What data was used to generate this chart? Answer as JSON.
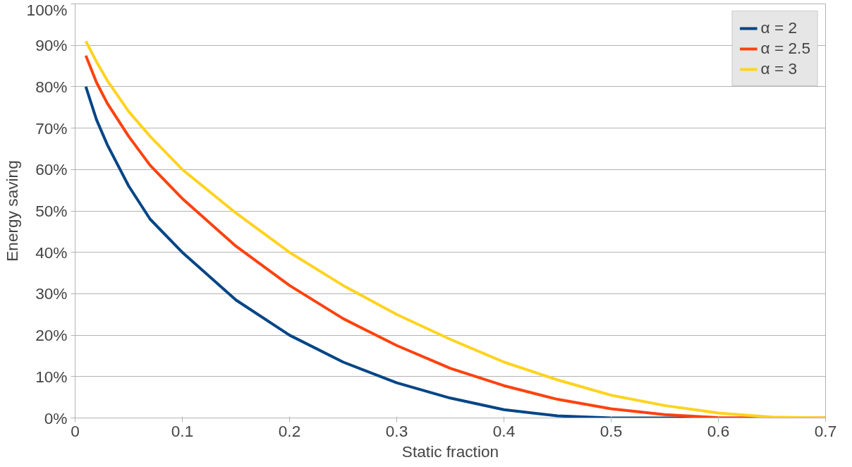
{
  "chart_data": {
    "type": "line",
    "xlabel": "Static fraction",
    "ylabel": "Energy saving",
    "x": [
      0.01,
      0.02,
      0.03,
      0.05,
      0.07,
      0.1,
      0.15,
      0.2,
      0.25,
      0.3,
      0.35,
      0.4,
      0.45,
      0.5,
      0.55,
      0.6,
      0.65,
      0.7
    ],
    "series": [
      {
        "name": "α = 2",
        "color": "#004586",
        "values": [
          80,
          72,
          66,
          56,
          48,
          40,
          28.5,
          20,
          13.5,
          8.5,
          4.8,
          2,
          0.5,
          0,
          0,
          0,
          null,
          null
        ]
      },
      {
        "name": "α = 2.5",
        "color": "#ff420e",
        "values": [
          87.5,
          81,
          76,
          68,
          61,
          53,
          41.5,
          32,
          24,
          17.5,
          12,
          7.8,
          4.5,
          2.2,
          0.8,
          0.1,
          0,
          0
        ]
      },
      {
        "name": "α = 3",
        "color": "#ffd320",
        "values": [
          91,
          86,
          81.5,
          74,
          68,
          60,
          49.5,
          40,
          32,
          25,
          19,
          13.5,
          9.2,
          5.5,
          3,
          1.2,
          0.2,
          0
        ]
      }
    ],
    "xlim": [
      0,
      0.7
    ],
    "xticks": [
      0,
      0.1,
      0.2,
      0.3,
      0.4,
      0.5,
      0.6,
      0.7
    ],
    "ylim": [
      0,
      100
    ],
    "yticks": [
      {
        "value": 0,
        "label": "0%"
      },
      {
        "value": 10,
        "label": "10%"
      },
      {
        "value": 20,
        "label": "20%"
      },
      {
        "value": 30,
        "label": "30%"
      },
      {
        "value": 40,
        "label": "40%"
      },
      {
        "value": 50,
        "label": "50%"
      },
      {
        "value": 60,
        "label": "60%"
      },
      {
        "value": 70,
        "label": "70%"
      },
      {
        "value": 80,
        "label": "80%"
      },
      {
        "value": 90,
        "label": "90%"
      },
      {
        "value": 100,
        "label": "100%"
      }
    ],
    "grid": "y",
    "legend": "top right",
    "marker": "none",
    "line_style": "solid"
  }
}
